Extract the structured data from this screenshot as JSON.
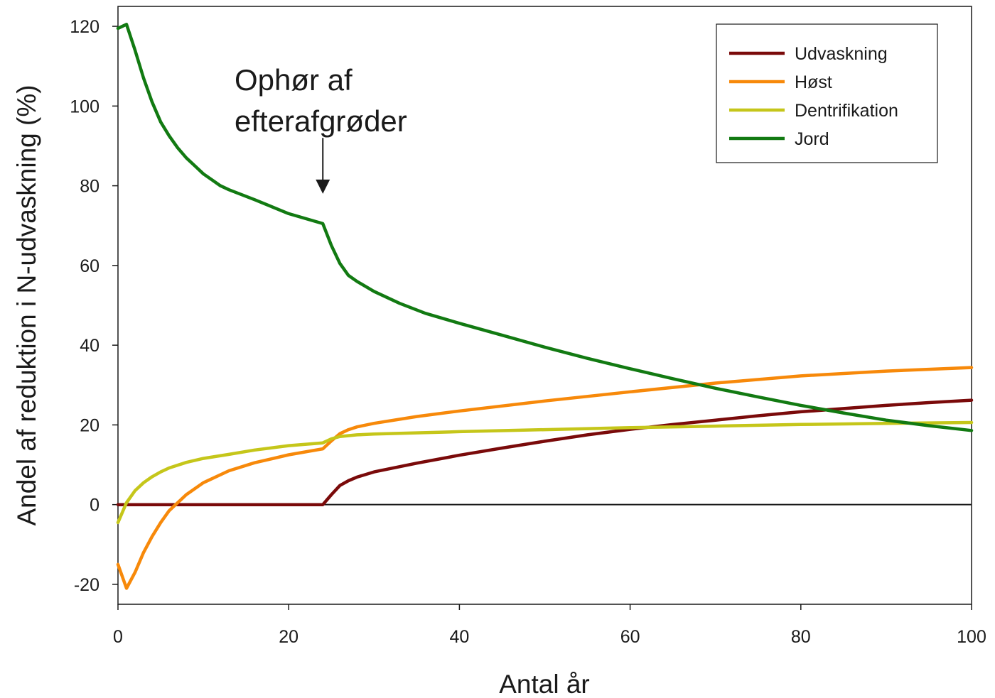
{
  "chart_data": {
    "type": "line",
    "title": "",
    "xlabel": "Antal år",
    "ylabel": "Andel af reduktion i N-udvaskning (%)",
    "xlim": [
      0,
      100
    ],
    "ylim": [
      -25,
      125
    ],
    "xticks": [
      0,
      20,
      40,
      60,
      80,
      100
    ],
    "yticks": [
      -20,
      0,
      20,
      40,
      60,
      80,
      100,
      120
    ],
    "grid": false,
    "zero_line": true,
    "legend_position": "top-right",
    "annotation": {
      "line1": "Ophør af",
      "line2": "efterafgrøder",
      "x": 24,
      "arrow_y_top": 92,
      "arrow_y_tip": 78
    },
    "series": [
      {
        "name": "Udvaskning",
        "color": "#7a0a0a",
        "x": [
          0,
          5,
          10,
          15,
          20,
          24,
          25,
          26,
          27,
          28,
          30,
          35,
          40,
          45,
          50,
          55,
          60,
          65,
          70,
          75,
          80,
          85,
          90,
          95,
          100
        ],
        "y": [
          0,
          0,
          0,
          0,
          0,
          0,
          2.5,
          4.8,
          6.0,
          6.9,
          8.2,
          10.4,
          12.4,
          14.2,
          15.9,
          17.5,
          18.9,
          20.1,
          21.2,
          22.3,
          23.3,
          24.1,
          24.9,
          25.6,
          26.2
        ]
      },
      {
        "name": "Høst",
        "color": "#f7890a",
        "x": [
          0,
          1,
          2,
          3,
          4,
          5,
          6,
          7,
          8,
          10,
          13,
          16,
          20,
          24,
          25,
          26,
          27,
          28,
          30,
          35,
          40,
          50,
          60,
          70,
          80,
          90,
          100
        ],
        "y": [
          -15,
          -21,
          -17,
          -12,
          -8,
          -4.5,
          -1.5,
          0.5,
          2.5,
          5.5,
          8.5,
          10.5,
          12.5,
          14,
          16,
          17.8,
          18.8,
          19.5,
          20.4,
          22.1,
          23.5,
          26,
          28.3,
          30.5,
          32.3,
          33.5,
          34.4
        ]
      },
      {
        "name": "Dentrifikation",
        "color": "#c5c61a",
        "x": [
          0,
          1,
          2,
          3,
          4,
          5,
          6,
          8,
          10,
          13,
          16,
          20,
          24,
          25,
          26,
          28,
          30,
          40,
          50,
          60,
          70,
          80,
          90,
          100
        ],
        "y": [
          -4.5,
          0.5,
          3.5,
          5.5,
          7,
          8.2,
          9.2,
          10.6,
          11.6,
          12.6,
          13.7,
          14.8,
          15.5,
          16.5,
          17.1,
          17.5,
          17.7,
          18.3,
          18.8,
          19.3,
          19.7,
          20.1,
          20.4,
          20.6
        ]
      },
      {
        "name": "Jord",
        "color": "#127a12",
        "x": [
          0,
          1,
          2,
          3,
          4,
          5,
          6,
          7,
          8,
          9,
          10,
          11,
          12,
          13,
          16,
          20,
          24,
          25,
          26,
          27,
          28,
          30,
          33,
          36,
          40,
          45,
          50,
          55,
          60,
          65,
          70,
          75,
          80,
          85,
          90,
          95,
          100
        ],
        "y": [
          119.5,
          120.5,
          114,
          107,
          101,
          96,
          92.5,
          89.5,
          87,
          85,
          83,
          81.5,
          80,
          79,
          76.5,
          73,
          70.5,
          65,
          60.5,
          57.5,
          56,
          53.5,
          50.5,
          48,
          45.5,
          42.5,
          39.5,
          36.7,
          34.1,
          31.6,
          29.2,
          27,
          24.9,
          23,
          21.2,
          19.8,
          18.6
        ]
      }
    ]
  }
}
